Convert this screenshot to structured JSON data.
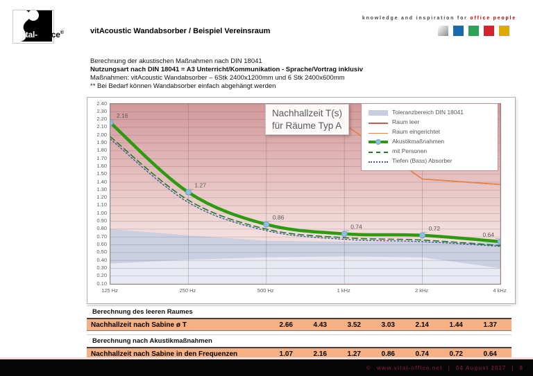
{
  "brand": {
    "logo_white": "Vital-",
    "logo_black": "Office",
    "logo_reg": "®",
    "tagline_gray": "knowledge and inspiration for",
    "tagline_red": "office people",
    "tagline_red_color": "#cc0000",
    "squares": [
      {
        "name": "silver",
        "color": "linear-gradient(135deg,#ffffff 0%,#cccccc 45%,#8d8d8d 100%)"
      },
      {
        "name": "blue",
        "color": "#1b6aae"
      },
      {
        "name": "green",
        "color": "#2fa355"
      },
      {
        "name": "red",
        "color": "#d2232e"
      },
      {
        "name": "gold",
        "color": "#dfa900"
      }
    ]
  },
  "header": {
    "title": "vitAcoustic Wandabsorber / Beispiel Vereinsraum"
  },
  "intro": {
    "line1": "Berechnung der akustischen Maßnahmen nach DIN 18041",
    "line2": "Nutzungsart nach DIN 18041 = A3 Unterricht/Kommunikation - Sprache/Vortrag inklusiv",
    "line3": "Maßnahmen: vitAcoustic Wandabsorber – 6Stk 2400x1200mm und 6 Stk 2400x600mm",
    "line4": "** Bei Bedarf können Wandabsorber einfach abgehängt werden"
  },
  "chart_data": {
    "type": "line",
    "title_line1": "Nachhallzeit T(s)",
    "title_line2": "für Räume Typ A",
    "x_categories": [
      "125 Hz",
      "250 Hz",
      "500 Hz",
      "1 kHz",
      "2 kHz",
      "4 kHz"
    ],
    "ylabel": "Nachhallzeit T (s)",
    "ylim": [
      0.1,
      2.4
    ],
    "ytick_step": 0.1,
    "grid": true,
    "legend_position": "top-right",
    "legend": [
      "Toleranzbereich DIN 18041",
      "Raum leer",
      "Raum eingerichtet",
      "Akustikmaßnahmen",
      "mit Personen",
      "Tiefen (Bass) Absorber"
    ],
    "tolerance_band": {
      "upper": [
        0.8,
        0.72,
        0.65,
        0.64,
        0.64,
        0.63
      ],
      "lower": [
        0.36,
        0.41,
        0.44,
        0.45,
        0.44,
        0.3
      ]
    },
    "series": [
      {
        "name": "Raum leer",
        "color": "#d2574f",
        "width": 1.6,
        "smooth": false,
        "values": [
          4.43,
          3.52,
          3.03,
          2.14,
          1.44,
          1.37
        ]
      },
      {
        "name": "Raum eingerichtet",
        "color": "#e8863f",
        "width": 1.4,
        "smooth": false,
        "values": [
          4.43,
          3.52,
          3.03,
          2.14,
          1.44,
          1.37
        ]
      },
      {
        "name": "Tiefen (Bass) Absorber",
        "color": "#3a5ba0",
        "width": 1.4,
        "dash": "2,3",
        "smooth": true,
        "values": [
          1.95,
          1.14,
          0.78,
          0.67,
          0.64,
          0.58
        ]
      },
      {
        "name": "mit Personen",
        "color": "#1e7a1e",
        "width": 1.6,
        "dash": "8,5",
        "smooth": true,
        "values": [
          1.98,
          1.17,
          0.8,
          0.69,
          0.66,
          0.59
        ]
      },
      {
        "name": "Akustikmaßnahmen",
        "color": "#2d9a0f",
        "width": 4.5,
        "smooth": true,
        "markers": true,
        "labels": true,
        "values": [
          2.16,
          1.27,
          0.86,
          0.74,
          0.72,
          0.64
        ]
      }
    ],
    "colors": {
      "plot_top": "#d2989a",
      "plot_mid": "#e5bfbf",
      "plot_low": "#f2dcdb",
      "plot_bottom": "#f5e3e2",
      "band": "#c7cee2",
      "band_light": "#e7eaf3",
      "marker_fill": "#8fbfdc",
      "marker_edge": "#69a2c8",
      "label_text": "#595959"
    }
  },
  "tables": {
    "empty_room": {
      "heading": "Berechnung des leeren Raumes",
      "row_label": "Nachhallzeit nach Sabine ø T",
      "values": [
        "2.66",
        "4.43",
        "3.52",
        "3.03",
        "2.14",
        "1.44",
        "1.37"
      ]
    },
    "measures": {
      "heading": "Berechnung nach Akustikmaßnahmen",
      "row_label": "Nachhallzeit nach Sabine in den Frequenzen",
      "values": [
        "1.07",
        "2.16",
        "1.27",
        "0.86",
        "0.74",
        "0.72",
        "0.64"
      ]
    }
  },
  "footer": {
    "copyright": "©",
    "url": "www.vital-office.net",
    "separator": "|",
    "date": "04 August 2017",
    "page": "8",
    "text_color": "#6b1838"
  }
}
